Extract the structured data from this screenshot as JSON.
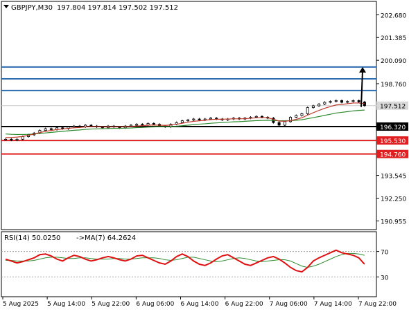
{
  "header": {
    "symbol_label": "GBPJPY,M30",
    "ohlc_text": "197.804 197.814 197.502 197.512"
  },
  "rsi_header": {
    "label": "RSI(14) 50.0250",
    "ma_label": "->MA(7) 64.2624"
  },
  "colors": {
    "background": "#ffffff",
    "frame": "#000000",
    "axis_text": "#000000",
    "candle": "#000000",
    "ma_fast": "#c0392b",
    "ma_slow": "#2e8b2e",
    "level_blue": "#2b6cb0",
    "level_black": "#000000",
    "level_red": "#e02020",
    "price_badge_bg": "#d9d9d9",
    "rsi_line": "#e01010",
    "rsi_ma": "#2e8b2e",
    "rsi_level": "#a0a0a0"
  },
  "chart_data": [
    {
      "type": "candlestick",
      "symbol": "GBPJPY",
      "timeframe": "M30",
      "current_price": 197.512,
      "ylim": [
        190.5,
        203.4
      ],
      "y_ticks": [
        202.68,
        201.385,
        200.09,
        198.76,
        197.512,
        196.32,
        195.53,
        194.76,
        193.545,
        192.25,
        190.955
      ],
      "x_ticks": [
        "5 Aug 2025",
        "5 Aug 14:00",
        "5 Aug 22:00",
        "6 Aug 06:00",
        "6 Aug 14:00",
        "6 Aug 22:00",
        "7 Aug 06:00",
        "7 Aug 14:00",
        "7 Aug 22:00"
      ],
      "levels": [
        {
          "value": 199.71,
          "label": "199.710",
          "color": "#2b6cb0"
        },
        {
          "value": 199.035,
          "label": "199.035",
          "color": "#2b6cb0"
        },
        {
          "value": 198.37,
          "label": "198.370",
          "color": "#2b6cb0"
        },
        {
          "value": 196.32,
          "label": "196.320",
          "color": "#000000"
        },
        {
          "value": 195.53,
          "label": "195.530",
          "color": "#e02020"
        },
        {
          "value": 194.76,
          "label": "194.760",
          "color": "#e02020"
        }
      ],
      "price_path": [
        195.6,
        195.55,
        195.6,
        195.75,
        195.85,
        195.95,
        196.1,
        196.2,
        196.15,
        196.25,
        196.2,
        196.3,
        196.35,
        196.3,
        196.4,
        196.35,
        196.3,
        196.25,
        196.35,
        196.3,
        196.25,
        196.35,
        196.4,
        196.45,
        196.4,
        196.5,
        196.45,
        196.35,
        196.3,
        196.45,
        196.55,
        196.65,
        196.7,
        196.75,
        196.7,
        196.75,
        196.8,
        196.75,
        196.7,
        196.75,
        196.8,
        196.75,
        196.8,
        196.85,
        196.9,
        196.85,
        196.8,
        196.55,
        196.4,
        196.6,
        196.85,
        196.95,
        197.05,
        197.4,
        197.5,
        197.6,
        197.7,
        197.75,
        197.8,
        197.7,
        197.75,
        197.8,
        197.72,
        197.51
      ],
      "ma_fast": [
        195.7,
        195.7,
        195.72,
        195.76,
        195.82,
        195.9,
        195.98,
        196.05,
        196.1,
        196.15,
        196.18,
        196.22,
        196.25,
        196.27,
        196.3,
        196.31,
        196.31,
        196.3,
        196.3,
        196.3,
        196.3,
        196.31,
        196.33,
        196.35,
        196.37,
        196.4,
        196.41,
        196.4,
        196.39,
        196.41,
        196.45,
        196.51,
        196.57,
        196.62,
        196.65,
        196.68,
        196.72,
        196.74,
        196.74,
        196.75,
        196.76,
        196.76,
        196.77,
        196.79,
        196.82,
        196.83,
        196.82,
        196.74,
        196.63,
        196.62,
        196.66,
        196.73,
        196.82,
        196.97,
        197.11,
        197.24,
        197.36,
        197.46,
        197.55,
        197.58,
        197.62,
        197.66,
        197.66,
        197.62
      ],
      "ma_slow": [
        195.9,
        195.88,
        195.87,
        195.87,
        195.88,
        195.9,
        195.93,
        195.96,
        195.99,
        196.02,
        196.05,
        196.08,
        196.11,
        196.13,
        196.16,
        196.18,
        196.19,
        196.2,
        196.21,
        196.22,
        196.22,
        196.23,
        196.24,
        196.26,
        196.27,
        196.29,
        196.3,
        196.31,
        196.31,
        196.32,
        196.34,
        196.37,
        196.4,
        196.43,
        196.46,
        196.48,
        196.51,
        196.53,
        196.55,
        196.57,
        196.59,
        196.6,
        196.62,
        196.64,
        196.66,
        196.67,
        196.68,
        196.67,
        196.65,
        196.65,
        196.66,
        196.68,
        196.71,
        196.77,
        196.83,
        196.89,
        196.96,
        197.02,
        197.09,
        197.13,
        197.17,
        197.21,
        197.24,
        197.26
      ],
      "projection_arrow": {
        "from": 197.512,
        "to": 199.71
      }
    },
    {
      "type": "line",
      "title": "RSI(14)",
      "ylim": [
        0,
        100
      ],
      "y_ticks": [
        70,
        30
      ],
      "levels": [
        70,
        30
      ],
      "series": [
        {
          "name": "RSI(14)",
          "values": [
            58,
            55,
            52,
            54,
            57,
            60,
            65,
            66,
            63,
            58,
            55,
            60,
            64,
            62,
            58,
            55,
            57,
            60,
            62,
            60,
            57,
            55,
            58,
            63,
            64,
            60,
            56,
            52,
            50,
            55,
            62,
            66,
            62,
            55,
            50,
            48,
            52,
            58,
            63,
            65,
            60,
            55,
            50,
            48,
            52,
            56,
            60,
            62,
            58,
            52,
            45,
            40,
            38,
            45,
            55,
            60,
            64,
            68,
            72,
            68,
            66,
            64,
            60,
            50
          ]
        },
        {
          "name": "MA(7)",
          "values": [
            56,
            56,
            55,
            55,
            55,
            56,
            58,
            60,
            61,
            61,
            60,
            59,
            59,
            60,
            60,
            59,
            58,
            58,
            58,
            59,
            59,
            58,
            58,
            59,
            60,
            60,
            60,
            59,
            57,
            56,
            57,
            59,
            61,
            61,
            59,
            57,
            55,
            54,
            55,
            57,
            59,
            60,
            59,
            57,
            55,
            54,
            55,
            56,
            57,
            57,
            55,
            51,
            47,
            45,
            47,
            50,
            54,
            58,
            62,
            65,
            67,
            67,
            66,
            64
          ]
        }
      ]
    }
  ]
}
